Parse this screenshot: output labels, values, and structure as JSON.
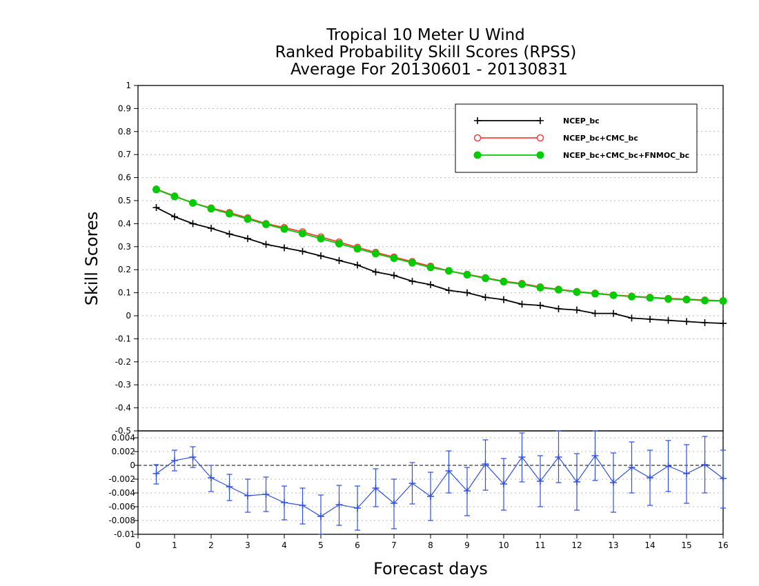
{
  "chart_data": [
    {
      "type": "line",
      "title_lines": [
        "Tropical 10 Meter U Wind",
        "Ranked Probability Skill Scores (RPSS)",
        "Average For 20130601 - 20130831"
      ],
      "xlabel": "Forecast days",
      "ylabel": "Skill Scores",
      "xlim": [
        0,
        16
      ],
      "ylim": [
        -0.5,
        1
      ],
      "xticks": [
        "0",
        "1",
        "2",
        "3",
        "4",
        "5",
        "6",
        "7",
        "8",
        "9",
        "10",
        "11",
        "12",
        "13",
        "14",
        "15",
        "16"
      ],
      "yticks": [
        "-0.5",
        "-0.4",
        "-0.3",
        "-0.2",
        "-0.1",
        "0",
        "0.1",
        "0.2",
        "0.3",
        "0.4",
        "0.5",
        "0.6",
        "0.7",
        "0.8",
        "0.9",
        "1"
      ],
      "grid": true,
      "legend_position": "top-right",
      "x": [
        0.5,
        1,
        1.5,
        2,
        2.5,
        3,
        3.5,
        4,
        4.5,
        5,
        5.5,
        6,
        6.5,
        7,
        7.5,
        8,
        8.5,
        9,
        9.5,
        10,
        10.5,
        11,
        11.5,
        12,
        12.5,
        13,
        13.5,
        14,
        14.5,
        15,
        15.5,
        16
      ],
      "series": [
        {
          "name": "NCEP_bc",
          "color": "#000000",
          "marker": "plus",
          "values": [
            0.47,
            0.43,
            0.4,
            0.38,
            0.355,
            0.335,
            0.31,
            0.295,
            0.28,
            0.26,
            0.24,
            0.22,
            0.19,
            0.175,
            0.15,
            0.135,
            0.11,
            0.1,
            0.08,
            0.07,
            0.05,
            0.045,
            0.03,
            0.025,
            0.01,
            0.01,
            -0.01,
            -0.015,
            -0.02,
            -0.025,
            -0.03,
            -0.033
          ]
        },
        {
          "name": "NCEP_bc+CMC_bc",
          "color": "#ff3b3b",
          "marker": "open-circle",
          "values": [
            0.55,
            0.52,
            0.49,
            0.468,
            0.448,
            0.425,
            0.4,
            0.383,
            0.364,
            0.342,
            0.32,
            0.297,
            0.275,
            0.255,
            0.235,
            0.215,
            0.195,
            0.18,
            0.165,
            0.15,
            0.14,
            0.125,
            0.115,
            0.105,
            0.098,
            0.09,
            0.085,
            0.08,
            0.075,
            0.072,
            0.068,
            0.065
          ]
        },
        {
          "name": "NCEP_bc+CMC_bc+FNMOC_bc",
          "color": "#00cc00",
          "marker": "filled-circle",
          "values": [
            0.548,
            0.518,
            0.49,
            0.465,
            0.443,
            0.42,
            0.397,
            0.377,
            0.357,
            0.335,
            0.313,
            0.291,
            0.27,
            0.25,
            0.23,
            0.21,
            0.195,
            0.178,
            0.163,
            0.148,
            0.137,
            0.122,
            0.113,
            0.103,
            0.096,
            0.089,
            0.083,
            0.078,
            0.073,
            0.07,
            0.066,
            0.064
          ]
        }
      ]
    },
    {
      "type": "line",
      "xlabel": "Forecast days",
      "xlim": [
        0,
        16
      ],
      "ylim": [
        -0.01,
        0.005
      ],
      "yticks": [
        "-0.01",
        "-0.008",
        "-0.006",
        "-0.004",
        "-0.002",
        "0",
        "0.002",
        "0.004"
      ],
      "grid": true,
      "x": [
        0.5,
        1,
        1.5,
        2,
        2.5,
        3,
        3.5,
        4,
        4.5,
        5,
        5.5,
        6,
        6.5,
        7,
        7.5,
        8,
        8.5,
        9,
        9.5,
        10,
        10.5,
        11,
        11.5,
        12,
        12.5,
        13,
        13.5,
        14,
        14.5,
        15,
        15.5,
        16
      ],
      "series": [
        {
          "color": "#3050e0",
          "marker": "plus",
          "values": [
            -0.0012,
            0.0007,
            0.0012,
            -0.0018,
            -0.0031,
            -0.0044,
            -0.0042,
            -0.0054,
            -0.0058,
            -0.0074,
            -0.0057,
            -0.0062,
            -0.0033,
            -0.0055,
            -0.0026,
            -0.0045,
            -0.0008,
            -0.0037,
            0.0002,
            -0.0027,
            0.0012,
            -0.0023,
            0.0012,
            -0.0024,
            0.0014,
            -0.0025,
            -0.0003,
            -0.0018,
            -0.0001,
            -0.0012,
            0.0001,
            -0.0019
          ],
          "error_low": [
            -0.0027,
            -0.0008,
            -0.0003,
            -0.0038,
            -0.0051,
            -0.0068,
            -0.0067,
            -0.0079,
            -0.0085,
            -0.0104,
            -0.0087,
            -0.0094,
            -0.006,
            -0.0092,
            -0.0056,
            -0.008,
            -0.004,
            -0.0073,
            -0.0036,
            -0.0065,
            -0.0024,
            -0.006,
            -0.0025,
            -0.0065,
            -0.0022,
            -0.0068,
            -0.004,
            -0.0058,
            -0.0038,
            -0.0055,
            -0.004,
            -0.0062
          ],
          "error_high": [
            0.0001,
            0.0022,
            0.0027,
            0.0,
            -0.0013,
            -0.002,
            -0.0017,
            -0.003,
            -0.0033,
            -0.0043,
            -0.0029,
            -0.003,
            -0.0005,
            -0.002,
            0.0004,
            -0.001,
            0.0021,
            -0.0003,
            0.0037,
            0.001,
            0.0047,
            0.0014,
            0.005,
            0.0017,
            0.005,
            0.0018,
            0.0034,
            0.0022,
            0.0036,
            0.003,
            0.0042,
            0.0022
          ]
        }
      ]
    }
  ]
}
